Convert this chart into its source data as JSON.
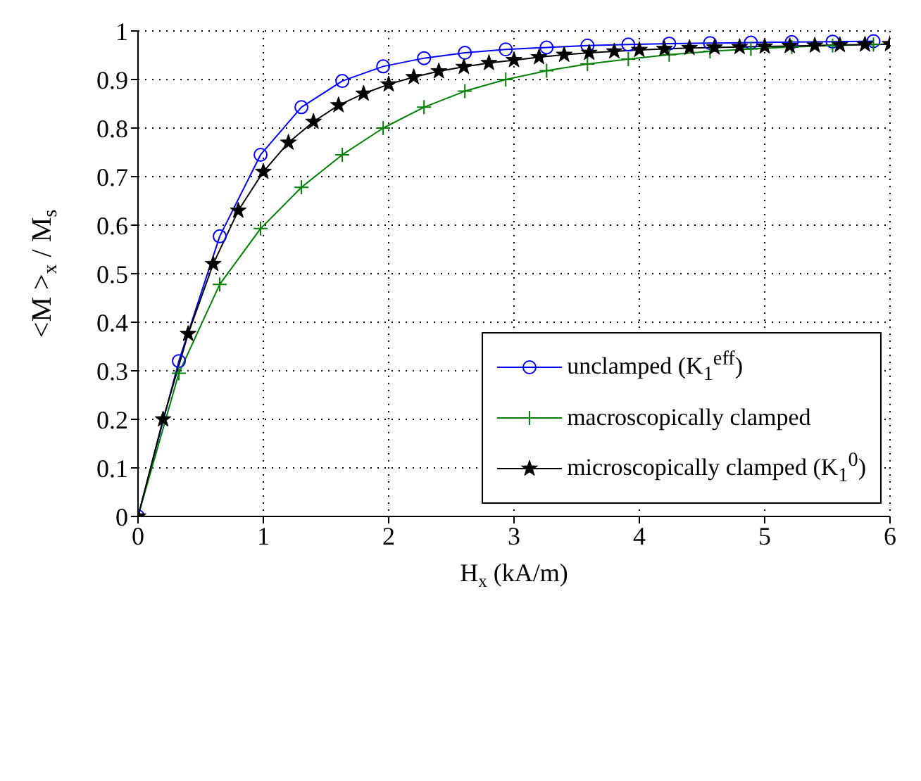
{
  "chart_data": {
    "type": "line",
    "xlabel": "H$_{x}$ (kA/m)",
    "ylabel": "<M >$_{x}$ / M$_{s}$",
    "xlim": [
      0,
      6
    ],
    "xticks": [
      0,
      1,
      2,
      3,
      4,
      5,
      6
    ],
    "ylim": [
      0,
      1
    ],
    "yticks": [
      0,
      0.1,
      0.2,
      0.3,
      0.4,
      0.5,
      0.6,
      0.7,
      0.8,
      0.9,
      1
    ],
    "grid": true,
    "legend": "right",
    "series": [
      {
        "name": "unclamped (K$_{1}$$^{eff}$)",
        "color": "#0000ff",
        "marker": "circle",
        "x": [
          0,
          0.326,
          0.652,
          0.978,
          1.304,
          1.63,
          1.956,
          2.282,
          2.608,
          2.934,
          3.26,
          3.586,
          3.912,
          4.238,
          4.564,
          4.89,
          5.216,
          5.542,
          5.868
        ],
        "values": [
          0,
          0.32,
          0.577,
          0.745,
          0.843,
          0.897,
          0.927,
          0.944,
          0.955,
          0.962,
          0.966,
          0.97,
          0.972,
          0.974,
          0.975,
          0.976,
          0.977,
          0.978,
          0.979
        ]
      },
      {
        "name": "macroscopically clamped",
        "color": "#008000",
        "marker": "cross",
        "x": [
          0,
          0.326,
          0.652,
          0.978,
          1.304,
          1.63,
          1.956,
          2.282,
          2.608,
          2.934,
          3.26,
          3.586,
          3.912,
          4.238,
          4.564,
          4.89,
          5.216,
          5.542,
          5.868
        ],
        "values": [
          0,
          0.295,
          0.478,
          0.593,
          0.678,
          0.745,
          0.8,
          0.843,
          0.876,
          0.9,
          0.918,
          0.932,
          0.942,
          0.951,
          0.958,
          0.963,
          0.967,
          0.97,
          0.972
        ]
      },
      {
        "name": "microscopically clamped (K$_{1}$$^{0}$)",
        "color": "#000000",
        "marker": "star",
        "x": [
          0,
          0.2,
          0.4,
          0.6,
          0.8,
          1,
          1.2,
          1.4,
          1.6,
          1.8,
          2,
          2.2,
          2.4,
          2.6,
          2.8,
          3,
          3.2,
          3.4,
          3.6,
          3.8,
          4,
          4.2,
          4.4,
          4.6,
          4.8,
          5,
          5.2,
          5.4,
          5.6,
          5.8,
          6
        ],
        "values": [
          0,
          0.2,
          0.376,
          0.52,
          0.63,
          0.71,
          0.77,
          0.813,
          0.847,
          0.871,
          0.89,
          0.905,
          0.917,
          0.926,
          0.934,
          0.94,
          0.946,
          0.951,
          0.955,
          0.958,
          0.961,
          0.963,
          0.965,
          0.966,
          0.967,
          0.968,
          0.969,
          0.97,
          0.971,
          0.972,
          0.973
        ]
      }
    ]
  }
}
